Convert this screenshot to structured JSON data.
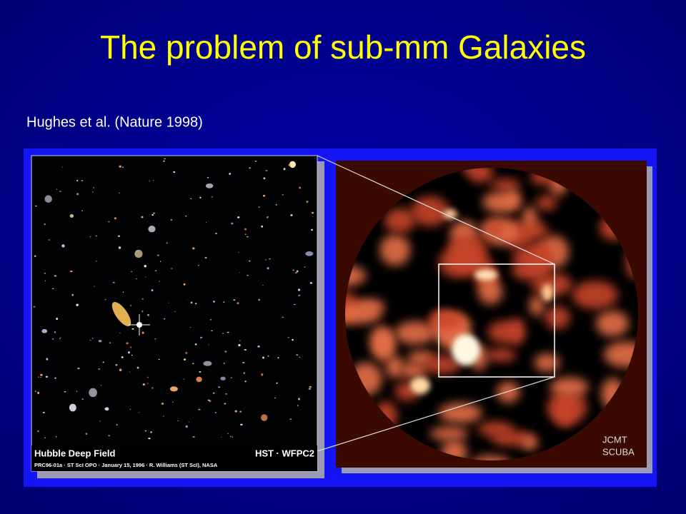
{
  "title": "The problem of sub-mm Galaxies",
  "subtitle": "Hughes et al. (Nature 1998)",
  "hubble_image": {
    "caption_title": "Hubble Deep Field",
    "caption_instrument": "HST · WFPC2",
    "caption_credit": "PRC96-01a · ST ScI OPO · January 15, 1996 · R. Williams (ST ScI), NASA"
  },
  "scuba_image": {
    "label_line1": "JCMT",
    "label_line2": "SCUBA"
  }
}
